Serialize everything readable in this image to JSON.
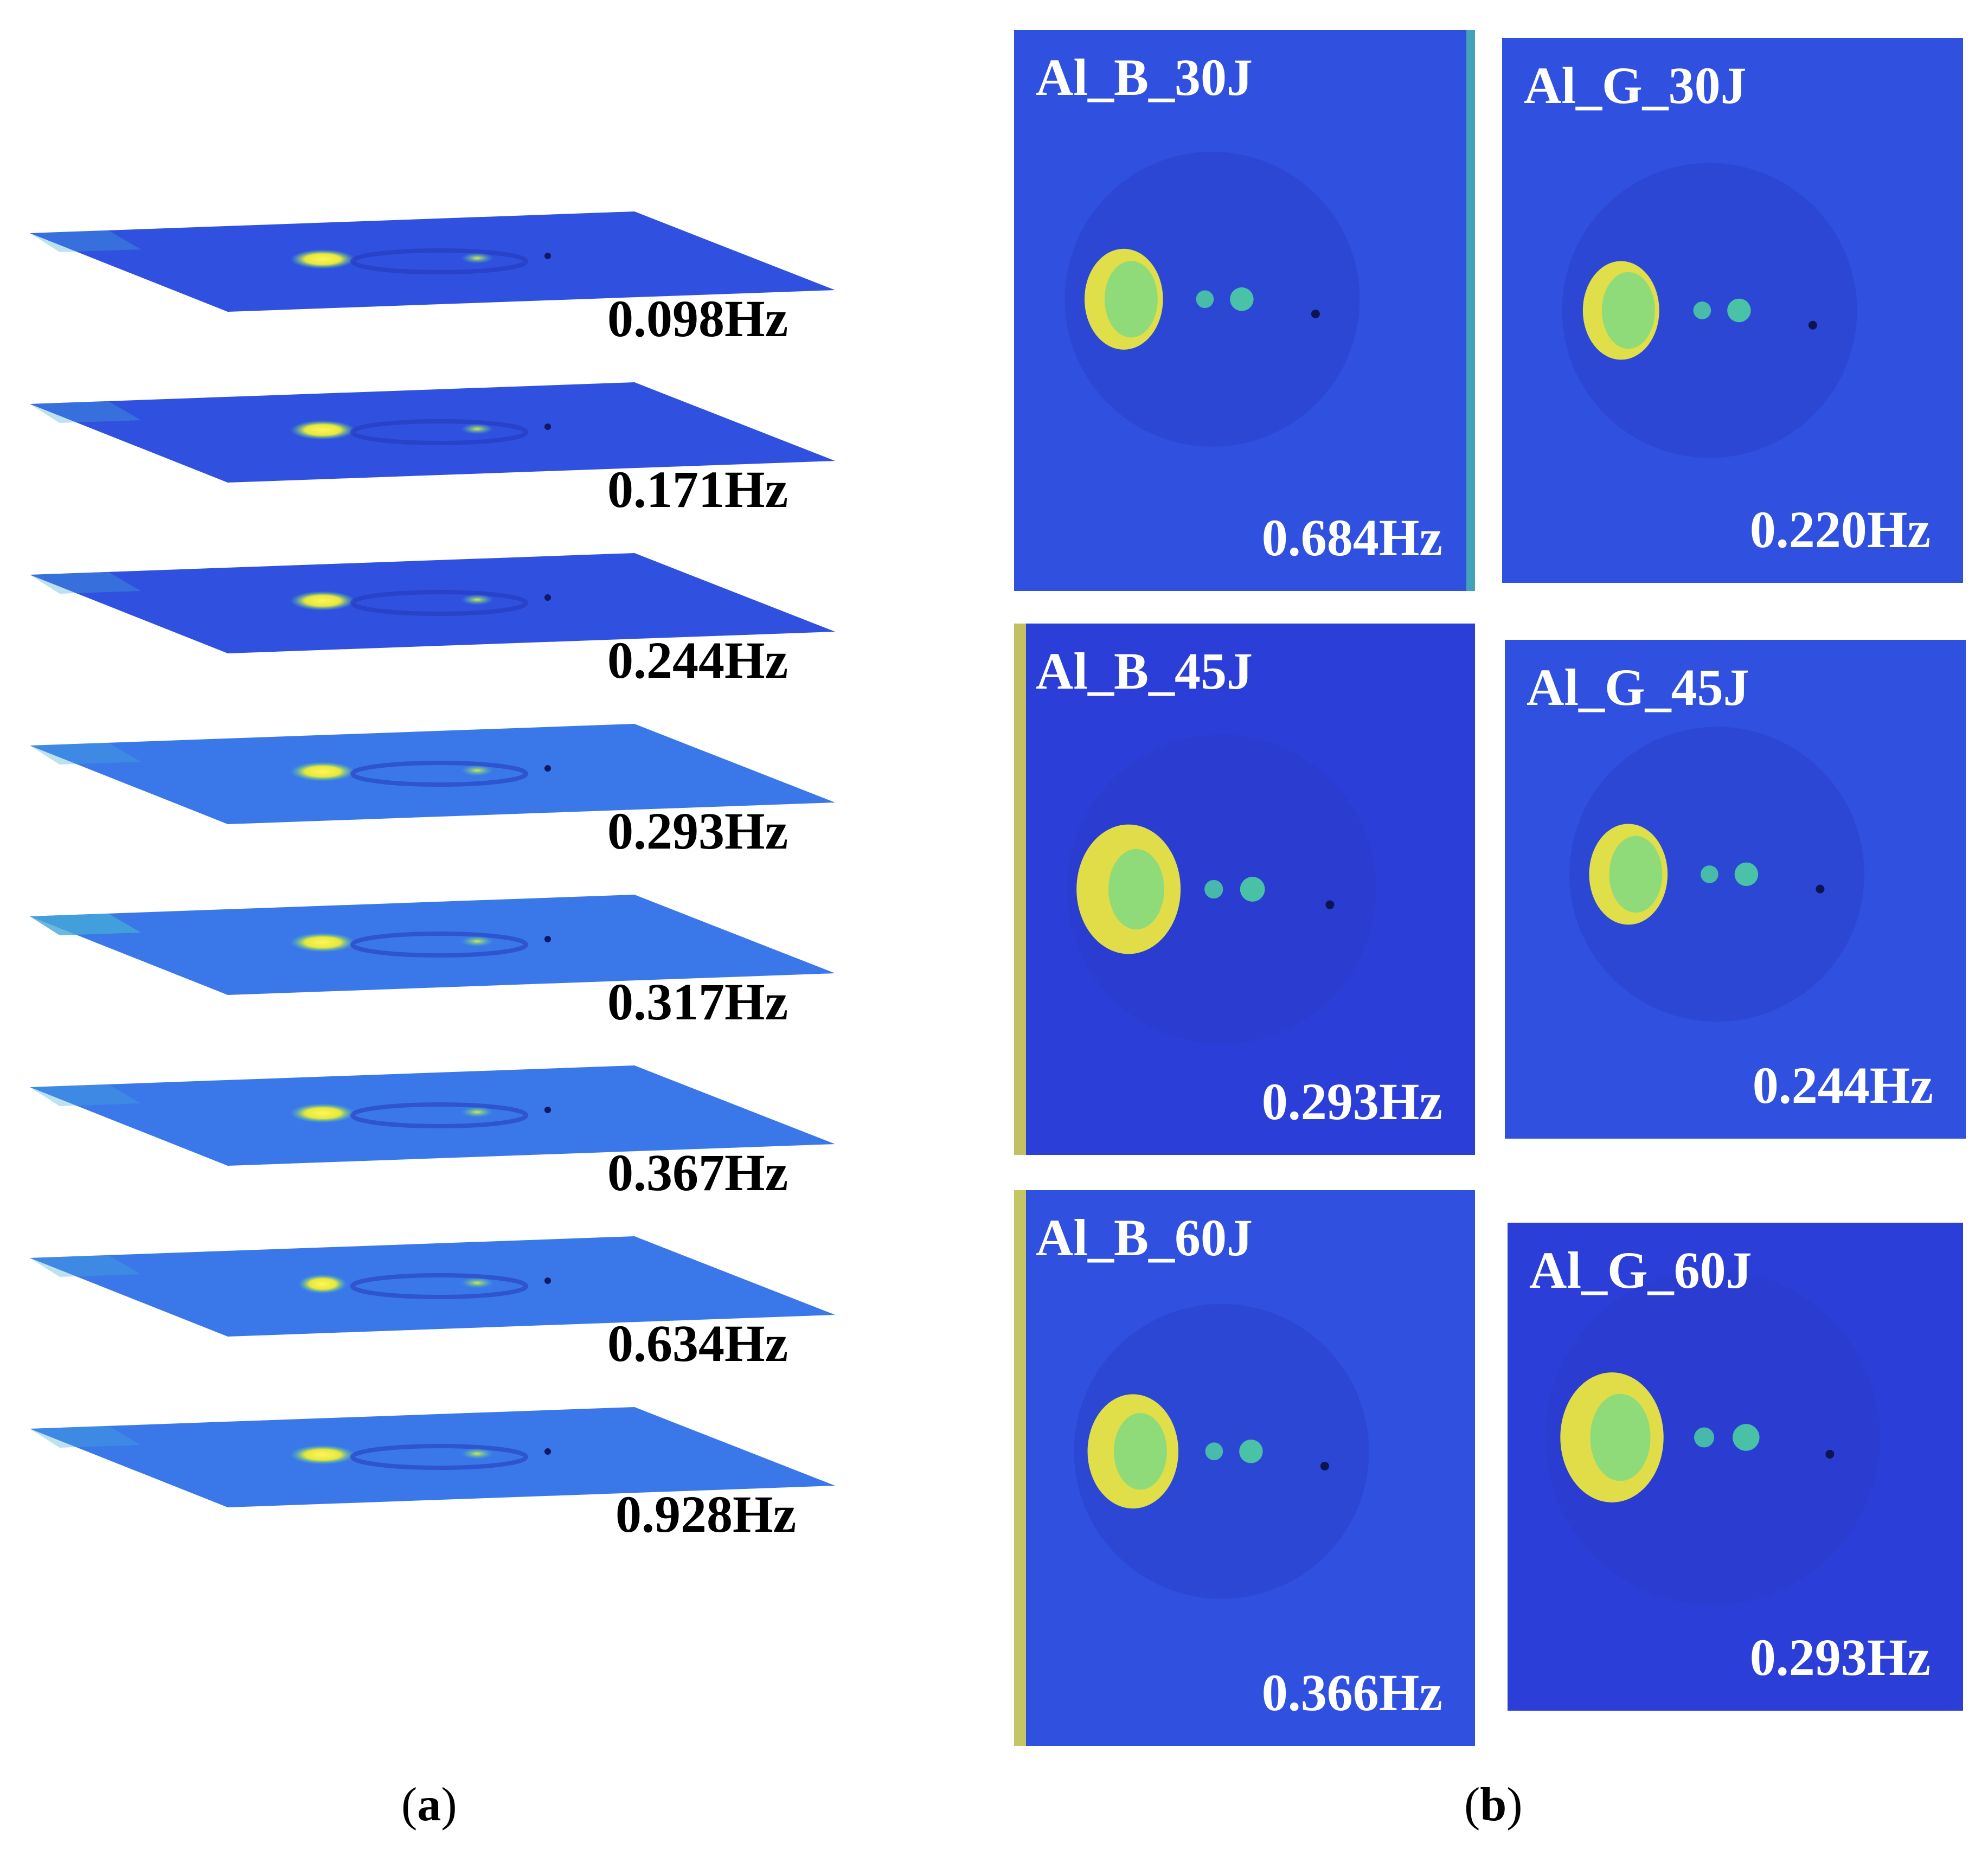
{
  "panel_a": {
    "caption": "(a)",
    "caption_letter": "a",
    "layers": [
      {
        "freq": "0.098Hz"
      },
      {
        "freq": "0.171Hz"
      },
      {
        "freq": "0.244Hz"
      },
      {
        "freq": "0.293Hz"
      },
      {
        "freq": "0.317Hz"
      },
      {
        "freq": "0.367Hz"
      },
      {
        "freq": "0.634Hz"
      },
      {
        "freq": "0.928Hz"
      }
    ]
  },
  "panel_b": {
    "caption": "(b)",
    "caption_letter": "b",
    "tiles": [
      {
        "label": "Al_B_30J",
        "freq": "0.684Hz"
      },
      {
        "label": "Al_G_30J",
        "freq": "0.220Hz"
      },
      {
        "label": "Al_B_45J",
        "freq": "0.293Hz"
      },
      {
        "label": "Al_G_45J",
        "freq": "0.244Hz"
      },
      {
        "label": "Al_B_60J",
        "freq": "0.366Hz"
      },
      {
        "label": "Al_G_60J",
        "freq": "0.293Hz"
      }
    ]
  },
  "colors": {
    "plate_dark": "#2b3fd8",
    "plate_mid": "#3050e0",
    "plate_light": "#3a78ea",
    "hot_yellow": "#f4ee3a",
    "warm_green": "#4fd8a0",
    "background": "#ffffff"
  }
}
